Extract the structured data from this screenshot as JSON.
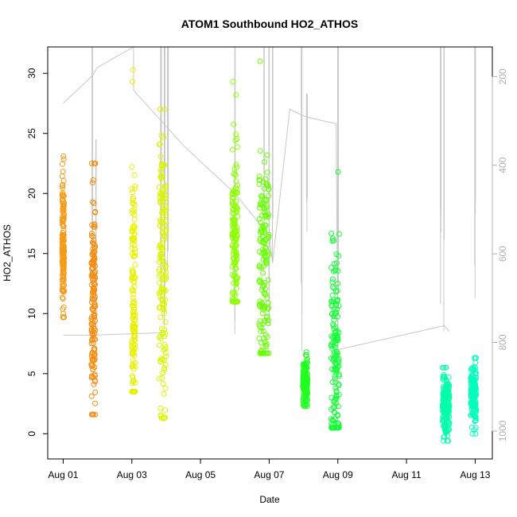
{
  "chart_data": {
    "type": "scatter",
    "title": "ATOM1 Southbound HO2_ATHOS",
    "xlabel": "Date",
    "ylabel": "HO2_ATHOS",
    "x_ticks": [
      "Aug 01",
      "Aug 03",
      "Aug 05",
      "Aug 07",
      "Aug 09",
      "Aug 11",
      "Aug 13"
    ],
    "x_tick_days": [
      1,
      3,
      5,
      7,
      9,
      11,
      13
    ],
    "xlim_days": [
      0.55,
      13.5
    ],
    "ylim": [
      -2.1,
      32.2
    ],
    "y_ticks": [
      0,
      5,
      10,
      15,
      20,
      25,
      30
    ],
    "right_axis": {
      "label": "",
      "ticks": [
        200,
        400,
        600,
        800,
        1000
      ],
      "ylim_inverted": [
        1063,
        133
      ]
    },
    "colors": {
      "series_scale": [
        "#f58e1a",
        "#ebff00",
        "#00ff33",
        "#00ffcc"
      ],
      "right_axis_and_altitude": "#c8c8c8"
    },
    "scatter_segments": [
      {
        "day_center": 1.0,
        "y_min": 9.7,
        "y_max": 23.1,
        "y_median": 15.5,
        "day_spread": 0.03,
        "color": "#f59b17"
      },
      {
        "day_center": 1.88,
        "y_min": 1.6,
        "y_max": 22.5,
        "y_median": 10.5,
        "day_spread": 0.06,
        "color": "#f58c10"
      },
      {
        "day_center": 3.05,
        "y_min": 3.5,
        "y_max": 30.3,
        "y_median": 10.0,
        "day_spread": 0.05,
        "color": "#e8f000"
      },
      {
        "day_center": 3.9,
        "y_min": 1.3,
        "y_max": 27.0,
        "y_median": 14.0,
        "day_spread": 0.1,
        "color": "#d9f500"
      },
      {
        "day_center": 6.0,
        "y_min": 11.0,
        "y_max": 29.3,
        "y_median": 15.5,
        "day_spread": 0.08,
        "color": "#8cff00"
      },
      {
        "day_center": 6.85,
        "y_min": 6.7,
        "y_max": 31.0,
        "y_median": 14.0,
        "day_spread": 0.14,
        "color": "#66ff00"
      },
      {
        "day_center": 8.05,
        "y_min": 2.3,
        "y_max": 6.8,
        "y_median": 4.2,
        "day_spread": 0.07,
        "color": "#22ff22"
      },
      {
        "day_center": 8.92,
        "y_min": 0.5,
        "y_max": 21.8,
        "y_median": 6.0,
        "day_spread": 0.12,
        "color": "#11ff33"
      },
      {
        "day_center": 12.15,
        "y_min": -0.6,
        "y_max": 5.5,
        "y_median": 2.5,
        "day_spread": 0.1,
        "color": "#00ffaa"
      },
      {
        "day_center": 12.95,
        "y_min": 0.0,
        "y_max": 6.3,
        "y_median": 3.3,
        "day_spread": 0.08,
        "color": "#00ffbb"
      }
    ],
    "altitude_path": [
      [
        1.0,
        27.5
      ],
      [
        1.85,
        29.8
      ],
      [
        2.0,
        30.5
      ],
      [
        3.05,
        32.2
      ],
      [
        3.05,
        28.6
      ],
      [
        4.5,
        24.0
      ],
      [
        6.0,
        20.0
      ],
      [
        7.0,
        16.5
      ],
      [
        7.1,
        14.2
      ],
      [
        7.6,
        27.0
      ],
      [
        8.05,
        26.4
      ],
      [
        8.95,
        25.8
      ],
      [
        9.0,
        7.0
      ],
      [
        12.1,
        9.0
      ],
      [
        12.25,
        8.5
      ]
    ],
    "altitude_spikes": [
      {
        "day": 1.85,
        "y_top": 32.2,
        "y_bottom": 8.2
      },
      {
        "day": 1.95,
        "y_top": 24.5,
        "y_bottom": 9.0
      },
      {
        "day": 3.85,
        "y_top": 32.2,
        "y_bottom": 10.5
      },
      {
        "day": 3.95,
        "y_top": 32.2,
        "y_bottom": 9.0
      },
      {
        "day": 4.05,
        "y_top": 32.2,
        "y_bottom": 13.5
      },
      {
        "day": 6.0,
        "y_top": 32.2,
        "y_bottom": 8.3
      },
      {
        "day": 6.85,
        "y_top": 32.2,
        "y_bottom": 16.5
      },
      {
        "day": 7.0,
        "y_top": 32.2,
        "y_bottom": 9.0
      },
      {
        "day": 7.1,
        "y_top": 32.2,
        "y_bottom": 14.5
      },
      {
        "day": 7.95,
        "y_top": 32.2,
        "y_bottom": 6.9
      },
      {
        "day": 8.1,
        "y_top": 28.3,
        "y_bottom": 16.8
      },
      {
        "day": 9.0,
        "y_top": 32.2,
        "y_bottom": 7.0
      },
      {
        "day": 12.0,
        "y_top": 32.2,
        "y_bottom": 10.8
      },
      {
        "day": 12.1,
        "y_top": 32.2,
        "y_bottom": 8.5
      },
      {
        "day": 13.0,
        "y_top": 32.2,
        "y_bottom": 11.3
      }
    ],
    "altitude_base": [
      [
        1.0,
        8.2
      ],
      [
        1.85,
        8.2
      ],
      [
        3.9,
        8.4
      ]
    ]
  }
}
